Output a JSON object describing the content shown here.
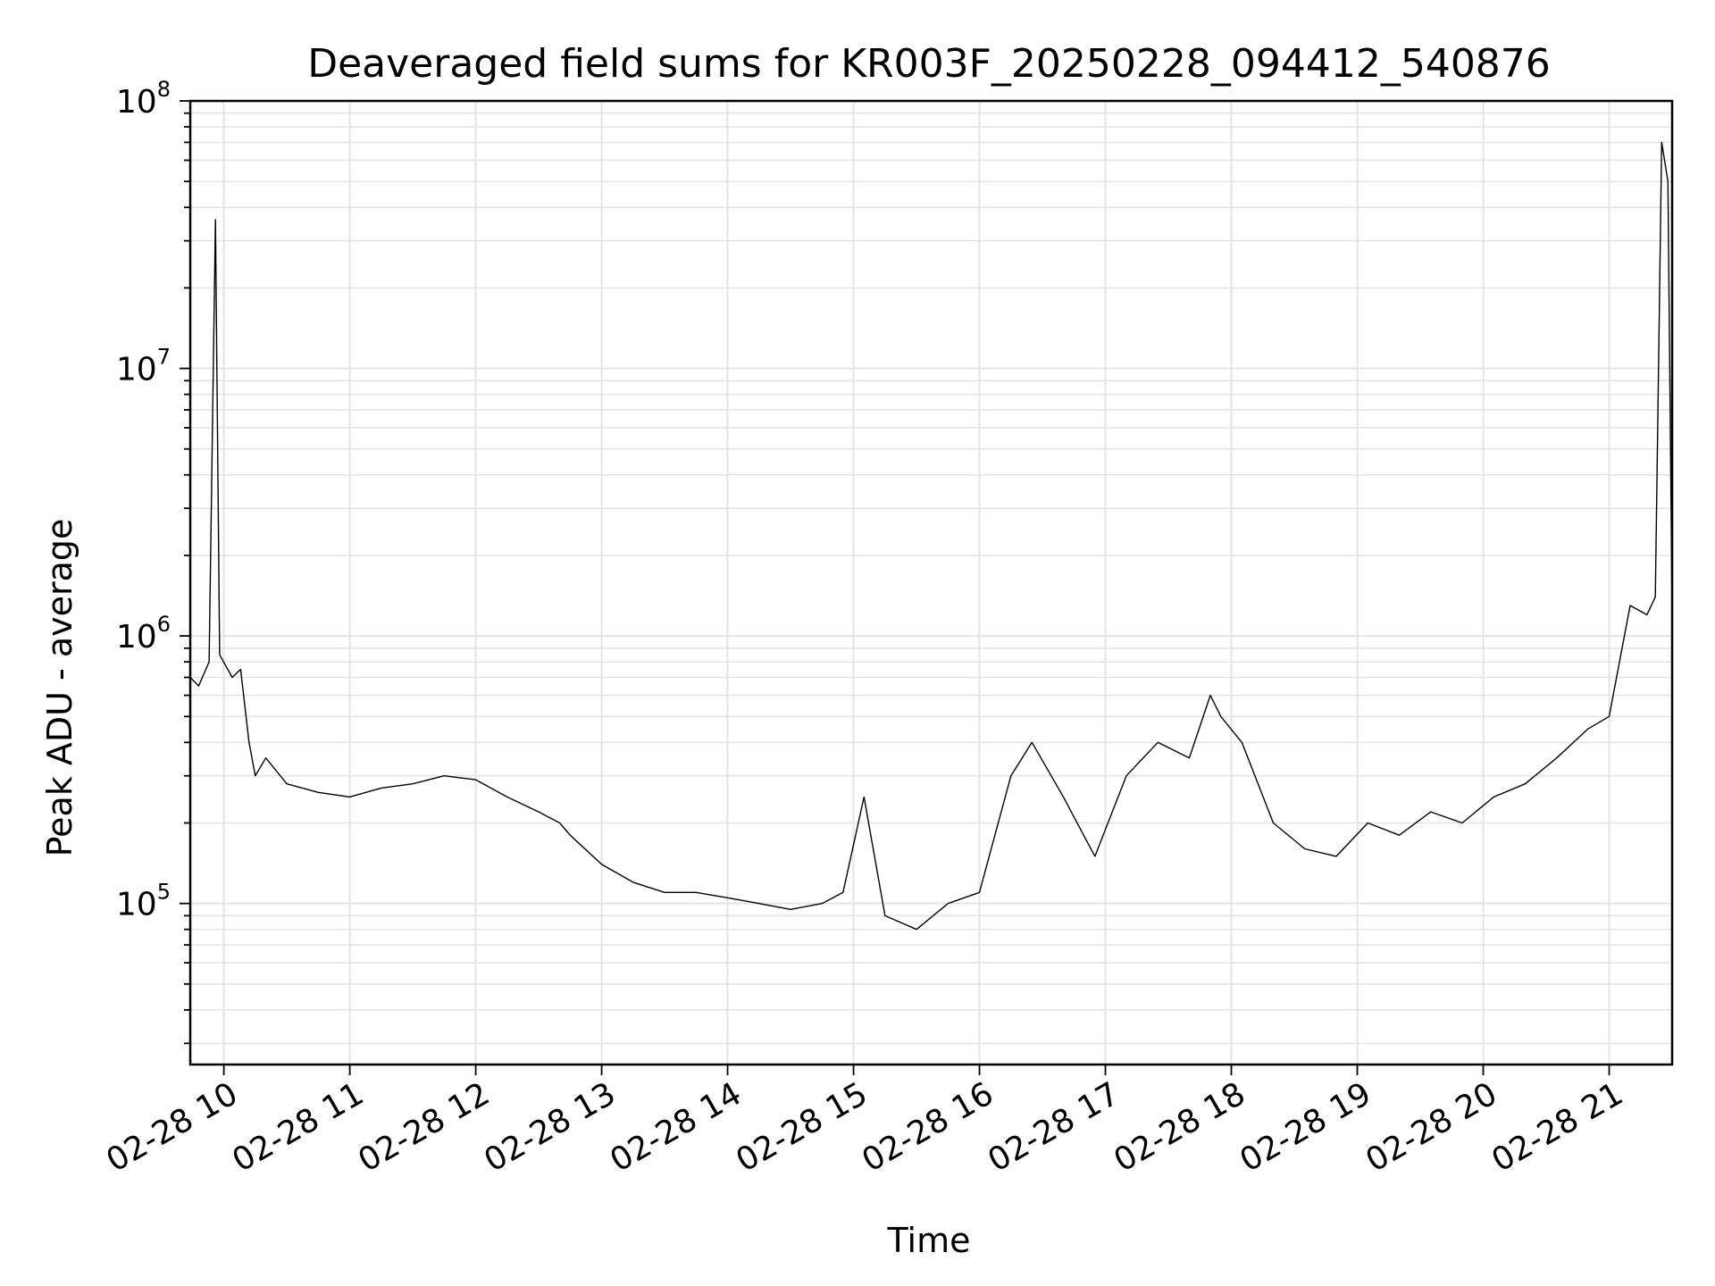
{
  "chart_data": {
    "type": "line",
    "title": "Deaveraged field sums for KR003F_20250228_094412_540876",
    "xlabel": "Time",
    "ylabel": "Peak ADU - average",
    "xlim": [
      "02-28 09:44",
      "02-28 21:30"
    ],
    "ylim": [
      25000,
      100000000
    ],
    "yscale": "log",
    "grid": true,
    "legend": "none",
    "line_color": "#000000",
    "x_tick_labels": [
      "02-28 10",
      "02-28 11",
      "02-28 12",
      "02-28 13",
      "02-28 14",
      "02-28 15",
      "02-28 16",
      "02-28 17",
      "02-28 18",
      "02-28 19",
      "02-28 20",
      "02-28 21"
    ],
    "y_ticks": [
      {
        "base": "10",
        "exp": "5",
        "value": 100000
      },
      {
        "base": "10",
        "exp": "6",
        "value": 1000000
      },
      {
        "base": "10",
        "exp": "7",
        "value": 10000000
      },
      {
        "base": "10",
        "exp": "8",
        "value": 100000000
      }
    ],
    "series": [
      {
        "x": [
          "02-28 09:44",
          "02-28 09:48",
          "02-28 09:53",
          "02-28 09:56",
          "02-28 09:58",
          "02-28 10:04",
          "02-28 10:08",
          "02-28 10:12",
          "02-28 10:15",
          "02-28 10:20",
          "02-28 10:30",
          "02-28 10:45",
          "02-28 11:00",
          "02-28 11:15",
          "02-28 11:30",
          "02-28 11:45",
          "02-28 12:00",
          "02-28 12:15",
          "02-28 12:30",
          "02-28 12:40",
          "02-28 12:45",
          "02-28 13:00",
          "02-28 13:15",
          "02-28 13:30",
          "02-28 13:45",
          "02-28 14:00",
          "02-28 14:15",
          "02-28 14:30",
          "02-28 14:45",
          "02-28 14:55",
          "02-28 15:05",
          "02-28 15:15",
          "02-28 15:30",
          "02-28 15:45",
          "02-28 16:00",
          "02-28 16:15",
          "02-28 16:25",
          "02-28 16:40",
          "02-28 16:55",
          "02-28 17:10",
          "02-28 17:25",
          "02-28 17:40",
          "02-28 17:50",
          "02-28 17:55",
          "02-28 18:05",
          "02-28 18:20",
          "02-28 18:35",
          "02-28 18:50",
          "02-28 19:05",
          "02-28 19:20",
          "02-28 19:35",
          "02-28 19:50",
          "02-28 20:05",
          "02-28 20:20",
          "02-28 20:35",
          "02-28 20:50",
          "02-28 21:00",
          "02-28 21:10",
          "02-28 21:18",
          "02-28 21:22",
          "02-28 21:25",
          "02-28 21:28",
          "02-28 21:30"
        ],
        "y": [
          700000,
          650000,
          800000,
          36000000,
          850000,
          700000,
          750000,
          400000,
          300000,
          350000,
          280000,
          260000,
          250000,
          270000,
          280000,
          300000,
          290000,
          250000,
          220000,
          200000,
          180000,
          140000,
          120000,
          110000,
          110000,
          105000,
          100000,
          95000,
          100000,
          110000,
          250000,
          90000,
          80000,
          100000,
          110000,
          300000,
          400000,
          250000,
          150000,
          300000,
          400000,
          350000,
          600000,
          500000,
          400000,
          200000,
          160000,
          150000,
          200000,
          180000,
          220000,
          200000,
          250000,
          280000,
          350000,
          450000,
          500000,
          1300000,
          1200000,
          1400000,
          70000000,
          50000000,
          1200000
        ]
      }
    ]
  }
}
